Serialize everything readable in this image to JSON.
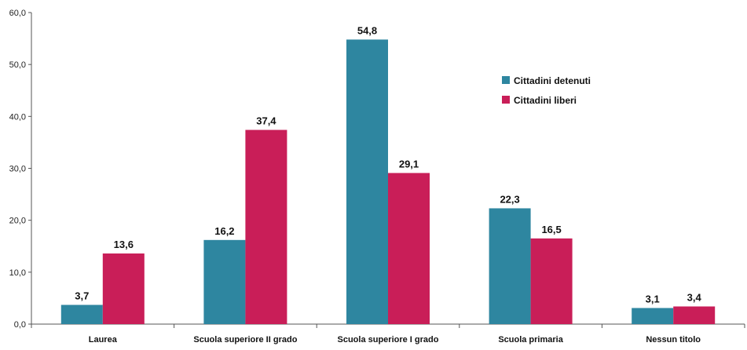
{
  "chart_data": {
    "type": "bar",
    "categories": [
      "Laurea",
      "Scuola superiore II grado",
      "Scuola superiore I grado",
      "Scuola primaria",
      "Nessun titolo"
    ],
    "series": [
      {
        "name": "Cittadini detenuti",
        "color": "#2E86A0",
        "values": [
          3.7,
          16.2,
          54.8,
          22.3,
          3.1
        ],
        "value_labels": [
          "3,7",
          "16,2",
          "54,8",
          "22,3",
          "3,1"
        ]
      },
      {
        "name": "Cittadini liberi",
        "color": "#C91E58",
        "values": [
          13.6,
          37.4,
          29.1,
          16.5,
          3.4
        ],
        "value_labels": [
          "13,6",
          "37,4",
          "29,1",
          "16,5",
          "3,4"
        ]
      }
    ],
    "ylim": [
      0,
      60
    ],
    "yticks": [
      0,
      10,
      20,
      30,
      40,
      50,
      60
    ],
    "ytick_labels": [
      "0,0",
      "10,0",
      "20,0",
      "30,0",
      "40,0",
      "50,0",
      "60,0"
    ],
    "grid": false,
    "legend_position": "top-right"
  }
}
